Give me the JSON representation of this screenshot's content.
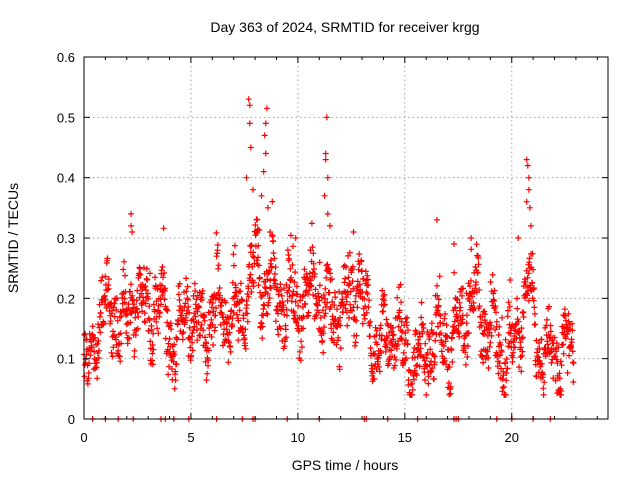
{
  "chart_data": {
    "type": "scatter",
    "title": "Day 363 of 2024, SRMTID for receiver krgg",
    "xlabel": "GPS time / hours",
    "ylabel": "SRMTID / TECUs",
    "xlim": [
      0,
      24.5
    ],
    "ylim": [
      0,
      0.6
    ],
    "xticks": [
      0,
      5,
      10,
      15,
      20
    ],
    "yticks": [
      0,
      0.1,
      0.2,
      0.3,
      0.4,
      0.5,
      0.6
    ],
    "xtick_labels": [
      "0",
      "5",
      "10",
      "15",
      "20"
    ],
    "ytick_labels": [
      "0",
      "0.1",
      "0.2",
      "0.3",
      "0.4",
      "0.5",
      "0.6"
    ],
    "grid": true,
    "marker": "+",
    "series_color": "#ff0000",
    "notes": "Dense cloud of ~2000 '+' markers between hour 0 and ~22.9; values mostly 0.05–0.30 TECU. Points rendered from an approximate envelope plus the labeled peak values below.",
    "envelope": [
      {
        "t": 0.0,
        "y": 0.08
      },
      {
        "t": 0.4,
        "y": 0.1
      },
      {
        "t": 0.8,
        "y": 0.19
      },
      {
        "t": 1.2,
        "y": 0.17
      },
      {
        "t": 1.6,
        "y": 0.17
      },
      {
        "t": 2.0,
        "y": 0.16
      },
      {
        "t": 2.4,
        "y": 0.2
      },
      {
        "t": 2.8,
        "y": 0.17
      },
      {
        "t": 3.2,
        "y": 0.17
      },
      {
        "t": 3.6,
        "y": 0.2
      },
      {
        "t": 4.0,
        "y": 0.13
      },
      {
        "t": 4.4,
        "y": 0.13
      },
      {
        "t": 4.8,
        "y": 0.19
      },
      {
        "t": 5.2,
        "y": 0.16
      },
      {
        "t": 5.6,
        "y": 0.14
      },
      {
        "t": 6.0,
        "y": 0.18
      },
      {
        "t": 6.4,
        "y": 0.19
      },
      {
        "t": 6.8,
        "y": 0.17
      },
      {
        "t": 7.2,
        "y": 0.16
      },
      {
        "t": 7.6,
        "y": 0.2
      },
      {
        "t": 8.0,
        "y": 0.26
      },
      {
        "t": 8.4,
        "y": 0.21
      },
      {
        "t": 8.8,
        "y": 0.22
      },
      {
        "t": 9.2,
        "y": 0.19
      },
      {
        "t": 9.6,
        "y": 0.19
      },
      {
        "t": 10.0,
        "y": 0.18
      },
      {
        "t": 10.4,
        "y": 0.2
      },
      {
        "t": 10.8,
        "y": 0.22
      },
      {
        "t": 11.2,
        "y": 0.17
      },
      {
        "t": 11.6,
        "y": 0.18
      },
      {
        "t": 12.0,
        "y": 0.17
      },
      {
        "t": 12.4,
        "y": 0.19
      },
      {
        "t": 12.8,
        "y": 0.23
      },
      {
        "t": 13.2,
        "y": 0.17
      },
      {
        "t": 13.6,
        "y": 0.12
      },
      {
        "t": 14.0,
        "y": 0.12
      },
      {
        "t": 14.4,
        "y": 0.15
      },
      {
        "t": 14.8,
        "y": 0.13
      },
      {
        "t": 15.2,
        "y": 0.1
      },
      {
        "t": 15.6,
        "y": 0.09
      },
      {
        "t": 16.0,
        "y": 0.12
      },
      {
        "t": 16.4,
        "y": 0.13
      },
      {
        "t": 16.8,
        "y": 0.14
      },
      {
        "t": 17.2,
        "y": 0.12
      },
      {
        "t": 17.6,
        "y": 0.17
      },
      {
        "t": 18.0,
        "y": 0.18
      },
      {
        "t": 18.4,
        "y": 0.2
      },
      {
        "t": 18.8,
        "y": 0.15
      },
      {
        "t": 19.2,
        "y": 0.14
      },
      {
        "t": 19.6,
        "y": 0.1
      },
      {
        "t": 20.0,
        "y": 0.12
      },
      {
        "t": 20.4,
        "y": 0.16
      },
      {
        "t": 20.8,
        "y": 0.22
      },
      {
        "t": 21.2,
        "y": 0.13
      },
      {
        "t": 21.6,
        "y": 0.09
      },
      {
        "t": 22.0,
        "y": 0.1
      },
      {
        "t": 22.4,
        "y": 0.11
      },
      {
        "t": 22.9,
        "y": 0.1
      }
    ],
    "peaks": [
      {
        "t": 2.2,
        "y": 0.34
      },
      {
        "t": 2.2,
        "y": 0.32
      },
      {
        "t": 2.25,
        "y": 0.31
      },
      {
        "t": 7.7,
        "y": 0.53
      },
      {
        "t": 7.75,
        "y": 0.52
      },
      {
        "t": 7.75,
        "y": 0.49
      },
      {
        "t": 7.8,
        "y": 0.45
      },
      {
        "t": 7.6,
        "y": 0.4
      },
      {
        "t": 7.9,
        "y": 0.38
      },
      {
        "t": 8.1,
        "y": 0.33
      },
      {
        "t": 8.5,
        "y": 0.49
      },
      {
        "t": 8.55,
        "y": 0.515
      },
      {
        "t": 8.45,
        "y": 0.47
      },
      {
        "t": 8.5,
        "y": 0.44
      },
      {
        "t": 8.4,
        "y": 0.41
      },
      {
        "t": 8.3,
        "y": 0.37
      },
      {
        "t": 8.6,
        "y": 0.35
      },
      {
        "t": 8.7,
        "y": 0.31
      },
      {
        "t": 11.35,
        "y": 0.5
      },
      {
        "t": 11.3,
        "y": 0.44
      },
      {
        "t": 11.3,
        "y": 0.43
      },
      {
        "t": 11.4,
        "y": 0.4
      },
      {
        "t": 11.25,
        "y": 0.37
      },
      {
        "t": 11.4,
        "y": 0.34
      },
      {
        "t": 11.5,
        "y": 0.32
      },
      {
        "t": 16.5,
        "y": 0.33
      },
      {
        "t": 20.7,
        "y": 0.43
      },
      {
        "t": 20.75,
        "y": 0.42
      },
      {
        "t": 20.8,
        "y": 0.4
      },
      {
        "t": 20.8,
        "y": 0.38
      },
      {
        "t": 20.7,
        "y": 0.36
      },
      {
        "t": 20.85,
        "y": 0.35
      },
      {
        "t": 20.9,
        "y": 0.32
      },
      {
        "t": 20.3,
        "y": 0.3
      },
      {
        "t": 9.9,
        "y": 0.3
      },
      {
        "t": 12.6,
        "y": 0.31
      },
      {
        "t": 17.3,
        "y": 0.29
      },
      {
        "t": 18.1,
        "y": 0.3
      }
    ],
    "zero_points": [
      0.4,
      1.0,
      1.6,
      2.3,
      3.6,
      3.8,
      4.2,
      4.9,
      6.2,
      7.4,
      7.9,
      8.0,
      9.5,
      11.0,
      13.1,
      13.2,
      14.2,
      15.6,
      17.3,
      17.4,
      17.5,
      19.3,
      20.0,
      21.0,
      21.8
    ]
  }
}
